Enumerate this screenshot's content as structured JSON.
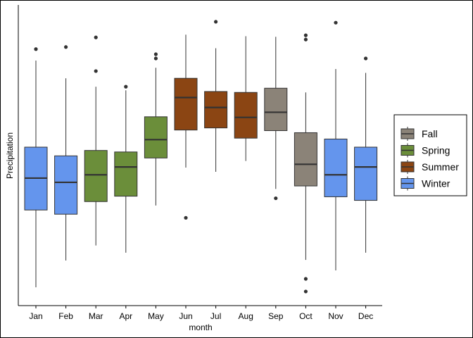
{
  "chart_data": {
    "type": "boxplot",
    "title": "",
    "xlabel": "month",
    "ylabel": "Precipitation",
    "y_tick_labels": "none",
    "grid": false,
    "legend_placement": "right",
    "categories": [
      "Jan",
      "Feb",
      "Mar",
      "Apr",
      "May",
      "Jun",
      "Jul",
      "Aug",
      "Sep",
      "Oct",
      "Nov",
      "Dec"
    ],
    "season_of_category": [
      "Winter",
      "Winter",
      "Spring",
      "Spring",
      "Spring",
      "Summer",
      "Summer",
      "Summer",
      "Fall",
      "Fall",
      "Winter",
      "Winter"
    ],
    "legend": [
      {
        "name": "Fall",
        "color": "#8b8378"
      },
      {
        "name": "Spring",
        "color": "#6b8e3a"
      },
      {
        "name": "Summer",
        "color": "#8b4513"
      },
      {
        "name": "Winter",
        "color": "#6495ed"
      }
    ],
    "ylim": [
      0,
      100
    ],
    "boxes": [
      {
        "category": "Jan",
        "whisker_low": 6.1,
        "q1": 31.8,
        "median": 42.4,
        "q3": 52.7,
        "whisker_high": 81.5,
        "outliers": [
          85.3
        ]
      },
      {
        "category": "Feb",
        "whisker_low": 15.0,
        "q1": 30.4,
        "median": 41.0,
        "q3": 49.8,
        "whisker_high": 75.6,
        "outliers": [
          86.0
        ]
      },
      {
        "category": "Mar",
        "whisker_low": 20.0,
        "q1": 34.6,
        "median": 43.5,
        "q3": 51.6,
        "whisker_high": 72.8,
        "outliers": [
          78.0,
          89.2
        ]
      },
      {
        "category": "Apr",
        "whisker_low": 17.6,
        "q1": 36.4,
        "median": 46.1,
        "q3": 51.1,
        "whisker_high": 71.6,
        "outliers": [
          72.8
        ]
      },
      {
        "category": "May",
        "whisker_low": 33.3,
        "q1": 49.1,
        "median": 55.2,
        "q3": 62.8,
        "whisker_high": 79.1,
        "outliers": [
          82.2,
          83.6
        ]
      },
      {
        "category": "Jun",
        "whisker_low": 45.9,
        "q1": 58.4,
        "median": 69.2,
        "q3": 75.6,
        "whisker_high": 90.1,
        "outliers": [
          29.2
        ]
      },
      {
        "category": "Jul",
        "whisker_low": 44.5,
        "q1": 59.1,
        "median": 65.9,
        "q3": 71.2,
        "whisker_high": 85.6,
        "outliers": [
          94.4
        ]
      },
      {
        "category": "Aug",
        "whisker_low": 48.1,
        "q1": 55.7,
        "median": 62.6,
        "q3": 70.9,
        "whisker_high": 89.6,
        "outliers": []
      },
      {
        "category": "Sep",
        "whisker_low": 38.8,
        "q1": 58.2,
        "median": 64.3,
        "q3": 72.3,
        "whisker_high": 89.4,
        "outliers": [
          35.7
        ]
      },
      {
        "category": "Oct",
        "whisker_low": 15.2,
        "q1": 39.8,
        "median": 47.0,
        "q3": 57.5,
        "whisker_high": 70.9,
        "outliers": [
          4.7,
          8.9,
          88.5,
          89.9
        ]
      },
      {
        "category": "Nov",
        "whisker_low": 11.7,
        "q1": 36.2,
        "median": 43.5,
        "q3": 55.4,
        "whisker_high": 78.7,
        "outliers": [
          94.1
        ]
      },
      {
        "category": "Dec",
        "whisker_low": 17.6,
        "q1": 35.0,
        "median": 46.1,
        "q3": 52.7,
        "whisker_high": 77.4,
        "outliers": [
          82.2
        ]
      }
    ]
  }
}
